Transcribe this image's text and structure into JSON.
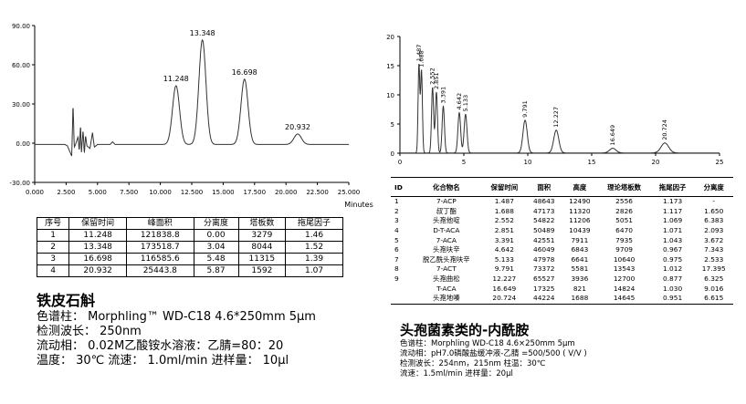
{
  "chart_data": [
    {
      "type": "line",
      "xlabel": "Minutes",
      "xlim": [
        0,
        25
      ],
      "ylim": [
        -30,
        90
      ],
      "xticks": [
        "0.000",
        "2.500",
        "5.000",
        "7.500",
        "10.000",
        "12.500",
        "15.000",
        "17.500",
        "20.000",
        "22.500",
        "25.000"
      ],
      "yticks": [
        "90.00",
        "60.00",
        "30.00",
        "0.00",
        "-30.00"
      ],
      "peaks": [
        {
          "rt": 11.248,
          "height": 45,
          "width": 0.28,
          "label": "11.248"
        },
        {
          "rt": 13.348,
          "height": 80,
          "width": 0.28,
          "label": "13.348"
        },
        {
          "rt": 16.698,
          "height": 50,
          "width": 0.28,
          "label": "16.698"
        },
        {
          "rt": 20.932,
          "height": 8,
          "width": 0.3,
          "label": "20.932"
        }
      ],
      "noise": [
        {
          "x": 0.0,
          "y": -1
        },
        {
          "x": 2.4,
          "y": -1
        },
        {
          "x": 2.6,
          "y": -2
        },
        {
          "x": 2.95,
          "y": -10
        },
        {
          "x": 3.05,
          "y": 30
        },
        {
          "x": 3.15,
          "y": -3
        },
        {
          "x": 3.25,
          "y": -1
        },
        {
          "x": 3.45,
          "y": 5
        },
        {
          "x": 3.55,
          "y": -6
        },
        {
          "x": 3.65,
          "y": 14
        },
        {
          "x": 3.72,
          "y": -7
        },
        {
          "x": 3.85,
          "y": 10
        },
        {
          "x": 3.95,
          "y": -8
        },
        {
          "x": 4.05,
          "y": 6
        },
        {
          "x": 4.15,
          "y": -2
        },
        {
          "x": 4.4,
          "y": -4
        },
        {
          "x": 4.6,
          "y": 8
        },
        {
          "x": 4.75,
          "y": -3
        },
        {
          "x": 5.0,
          "y": -1
        },
        {
          "x": 6.0,
          "y": -1
        },
        {
          "x": 6.2,
          "y": 1
        },
        {
          "x": 6.4,
          "y": -1
        },
        {
          "x": 9.0,
          "y": -1
        },
        {
          "x": 25.0,
          "y": -1
        }
      ]
    },
    {
      "type": "line",
      "xlim": [
        0,
        25
      ],
      "ylim": [
        0,
        20
      ],
      "xticks": [
        "0",
        "5",
        "10",
        "15",
        "20",
        "25"
      ],
      "yticks": [
        "0",
        "5",
        "10",
        "15",
        "20"
      ],
      "peaks": [
        {
          "rt": 1.487,
          "height": 15.0,
          "label": "1.487"
        },
        {
          "rt": 1.688,
          "height": 14.0,
          "label": "1.688"
        },
        {
          "rt": 2.552,
          "height": 11.2,
          "label": "2.552"
        },
        {
          "rt": 2.851,
          "height": 10.4,
          "label": "2.851"
        },
        {
          "rt": 3.391,
          "height": 8.0,
          "label": "3.391"
        },
        {
          "rt": 4.642,
          "height": 6.9,
          "label": "4.642"
        },
        {
          "rt": 5.133,
          "height": 6.6,
          "label": "5.133"
        },
        {
          "rt": 9.791,
          "height": 5.6,
          "label": "9.791"
        },
        {
          "rt": 12.227,
          "height": 3.9,
          "label": "12.227"
        },
        {
          "rt": 16.649,
          "height": 0.8,
          "label": "16.649"
        },
        {
          "rt": 20.724,
          "height": 1.7,
          "label": "20.724"
        }
      ]
    }
  ],
  "left_table": {
    "headers": [
      "序号",
      "保留时间",
      "峰面积",
      "分离度",
      "塔板数",
      "拖尾因子"
    ],
    "rows": [
      [
        "1",
        "11.248",
        "121838.8",
        "0.00",
        "3279",
        "1.46"
      ],
      [
        "2",
        "13.348",
        "173518.7",
        "3.04",
        "8044",
        "1.52"
      ],
      [
        "3",
        "16.698",
        "116585.6",
        "5.48",
        "11315",
        "1.39"
      ],
      [
        "4",
        "20.932",
        "25443.8",
        "5.87",
        "1592",
        "1.07"
      ]
    ]
  },
  "right_table": {
    "headers": [
      "ID",
      "化合物名",
      "保留时间",
      "面积",
      "高度",
      "理论塔板数",
      "拖尾因子",
      "分离度"
    ],
    "rows": [
      [
        "1",
        "7-ACP",
        "1.487",
        "48643",
        "12490",
        "2556",
        "1.173",
        "-"
      ],
      [
        "2",
        "叔丁酯",
        "1.688",
        "47173",
        "11320",
        "2826",
        "1.117",
        "1.650"
      ],
      [
        "3",
        "头孢他啶",
        "2.552",
        "54822",
        "11206",
        "5051",
        "1.069",
        "6.383"
      ],
      [
        "4",
        "D-T-ACA",
        "2.851",
        "50489",
        "10439",
        "6470",
        "1.071",
        "2.093"
      ],
      [
        "5",
        "7-ACA",
        "3.391",
        "42551",
        "7911",
        "7935",
        "1.043",
        "3.672"
      ],
      [
        "6",
        "头孢呋辛",
        "4.642",
        "46049",
        "6843",
        "9709",
        "0.967",
        "7.343"
      ],
      [
        "7",
        "脱乙酰头孢呋辛",
        "5.133",
        "47978",
        "6641",
        "10640",
        "0.975",
        "2.533"
      ],
      [
        "8",
        "7-ACT",
        "9.791",
        "73372",
        "5581",
        "13543",
        "1.012",
        "17.395"
      ],
      [
        "9",
        "头孢曲松",
        "12.227",
        "65527",
        "3936",
        "12700",
        "0.877",
        "6.325"
      ],
      [
        "",
        "T-ACA",
        "16.649",
        "17325",
        "821",
        "14824",
        "1.030",
        "9.016"
      ],
      [
        "",
        "头孢地嗪",
        "20.724",
        "44224",
        "1688",
        "14645",
        "0.951",
        "6.615"
      ]
    ]
  },
  "left_caption": {
    "title": "铁皮石斛",
    "line1": "色谱柱： Morphling™ WD-C18 4.6*250mm 5μm",
    "line2": "检测波长： 250nm",
    "line3": "流动相： 0.02M乙酸铵水溶液：乙腈=80：20",
    "line4": "温度： 30℃   流速： 1.0ml/min    进样量： 10μl"
  },
  "right_caption": {
    "title": "头孢菌素类的-内酰胺",
    "line1": "色谱柱：Morphling WD-C18    4.6×250mm 5μm",
    "line2": "流动相：pH7.0磷酸盐缓冲液-乙腈 =500/500 ( V/V )",
    "line3": "检测波长：254nm，215nm  柱温：30℃",
    "line4": "流速：1.5ml/min    进样量：20μl"
  },
  "colors": {
    "trace": "#000000",
    "axis": "#000000",
    "grid": "#dddddd"
  }
}
